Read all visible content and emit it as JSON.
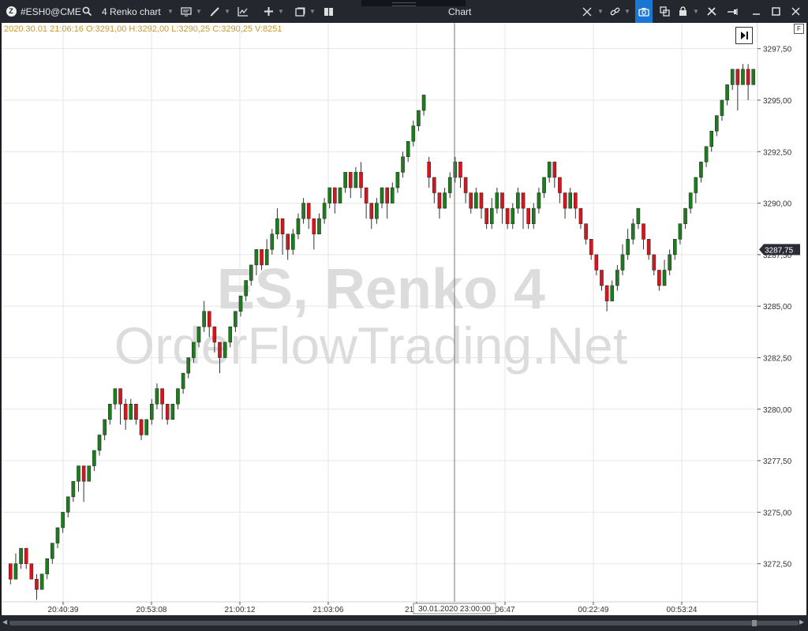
{
  "toolbar": {
    "symbol": "#ESH0@CME",
    "chart_type_label": "4 Renko chart",
    "window_title": "Chart",
    "icons": [
      "logo-icon",
      "search-icon",
      "template-icon",
      "pencil-icon",
      "indicator-icon",
      "plus-icon",
      "window-icon",
      "layout-icon",
      "crosshair-icon",
      "link-icon",
      "camera-icon",
      "copy-icon",
      "lock-icon",
      "tools-icon",
      "pin-icon",
      "minimize-icon",
      "maximize-icon",
      "close-icon"
    ]
  },
  "info_line": "2020.30.01 21:06:16 O:3291,00 H:3292,00 L:3290,25 C:3290,25 V:8251",
  "watermark": {
    "line1": "ES, Renko 4",
    "line2": "OrderFlowTrading.Net"
  },
  "colors": {
    "up": "#1e7b1e",
    "down": "#d9141c",
    "wick": "#333333",
    "grid": "#e6e6e6",
    "watermark": "#dcdcdc",
    "background": "#ffffff"
  },
  "chart_data": {
    "type": "candlestick",
    "brick_size": 1.0,
    "ylim": [
      3270.0,
      3298.75
    ],
    "y_ticks": [
      "3297,50",
      "3295,00",
      "3292,50",
      "3290,00",
      "3287,50",
      "3285,00",
      "3282,50",
      "3280,00",
      "3277,50",
      "3275,00",
      "3272,50"
    ],
    "x_ticks": [
      "20:40:39",
      "20:53:08",
      "21:00:12",
      "21:03:06",
      "21:",
      "06:47",
      "00:22:49",
      "00:53:24"
    ],
    "current_price_label": "3287,75",
    "current_price": 3287.75,
    "crosshair_label": "30.01.2020 23:00:00",
    "bricks": [
      {
        "open": 3272.5,
        "close": 3271.75,
        "high": 3272.5,
        "low": 3271.5
      },
      {
        "open": 3271.75,
        "close": 3272.5,
        "high": 3273.0,
        "low": 3271.75
      },
      {
        "open": 3272.5,
        "close": 3273.25,
        "high": 3273.25,
        "low": 3272.25
      },
      {
        "open": 3273.25,
        "close": 3272.5,
        "high": 3273.25,
        "low": 3272.25
      },
      {
        "open": 3272.5,
        "close": 3271.75,
        "high": 3272.5,
        "low": 3271.75
      },
      {
        "open": 3271.75,
        "close": 3271.25,
        "high": 3272.0,
        "low": 3270.75
      },
      {
        "open": 3271.25,
        "close": 3272.0,
        "high": 3272.0,
        "low": 3271.25
      },
      {
        "open": 3272.0,
        "close": 3272.75,
        "high": 3272.75,
        "low": 3271.75
      },
      {
        "open": 3272.75,
        "close": 3273.5,
        "high": 3273.5,
        "low": 3272.5
      },
      {
        "open": 3273.5,
        "close": 3274.25,
        "high": 3274.25,
        "low": 3273.25
      },
      {
        "open": 3274.25,
        "close": 3275.0,
        "high": 3275.0,
        "low": 3274.0
      },
      {
        "open": 3275.0,
        "close": 3275.75,
        "high": 3275.75,
        "low": 3274.75
      },
      {
        "open": 3275.75,
        "close": 3276.5,
        "high": 3276.5,
        "low": 3275.5
      },
      {
        "open": 3276.5,
        "close": 3277.25,
        "high": 3277.25,
        "low": 3276.0
      },
      {
        "open": 3277.25,
        "close": 3276.5,
        "high": 3277.25,
        "low": 3275.5
      },
      {
        "open": 3276.5,
        "close": 3277.25,
        "high": 3277.25,
        "low": 3276.5
      },
      {
        "open": 3277.25,
        "close": 3278.0,
        "high": 3278.0,
        "low": 3277.0
      },
      {
        "open": 3278.0,
        "close": 3278.75,
        "high": 3278.75,
        "low": 3277.75
      },
      {
        "open": 3278.75,
        "close": 3279.5,
        "high": 3279.5,
        "low": 3278.5
      },
      {
        "open": 3279.5,
        "close": 3280.25,
        "high": 3280.25,
        "low": 3279.25
      },
      {
        "open": 3280.25,
        "close": 3281.0,
        "high": 3281.0,
        "low": 3280.0
      },
      {
        "open": 3281.0,
        "close": 3280.25,
        "high": 3281.0,
        "low": 3279.25
      },
      {
        "open": 3280.25,
        "close": 3279.5,
        "high": 3280.5,
        "low": 3279.0
      },
      {
        "open": 3279.5,
        "close": 3280.25,
        "high": 3280.5,
        "low": 3279.5
      },
      {
        "open": 3280.25,
        "close": 3279.5,
        "high": 3280.25,
        "low": 3279.25
      },
      {
        "open": 3279.5,
        "close": 3278.75,
        "high": 3279.5,
        "low": 3278.5
      },
      {
        "open": 3278.75,
        "close": 3279.5,
        "high": 3279.5,
        "low": 3278.75
      },
      {
        "open": 3279.5,
        "close": 3280.25,
        "high": 3280.5,
        "low": 3279.25
      },
      {
        "open": 3280.25,
        "close": 3281.0,
        "high": 3281.25,
        "low": 3280.0
      },
      {
        "open": 3281.0,
        "close": 3280.25,
        "high": 3281.0,
        "low": 3279.5
      },
      {
        "open": 3280.25,
        "close": 3279.5,
        "high": 3280.25,
        "low": 3279.25
      },
      {
        "open": 3279.5,
        "close": 3280.25,
        "high": 3280.25,
        "low": 3279.5
      },
      {
        "open": 3280.25,
        "close": 3281.0,
        "high": 3281.0,
        "low": 3280.0
      },
      {
        "open": 3281.0,
        "close": 3281.75,
        "high": 3281.75,
        "low": 3280.75
      },
      {
        "open": 3281.75,
        "close": 3282.5,
        "high": 3282.5,
        "low": 3281.5
      },
      {
        "open": 3282.5,
        "close": 3283.25,
        "high": 3283.25,
        "low": 3282.25
      },
      {
        "open": 3283.25,
        "close": 3284.0,
        "high": 3284.0,
        "low": 3283.0
      },
      {
        "open": 3284.0,
        "close": 3284.75,
        "high": 3285.25,
        "low": 3283.75
      },
      {
        "open": 3284.75,
        "close": 3284.0,
        "high": 3284.75,
        "low": 3283.5
      },
      {
        "open": 3284.0,
        "close": 3283.25,
        "high": 3284.0,
        "low": 3282.75
      },
      {
        "open": 3283.25,
        "close": 3282.5,
        "high": 3283.25,
        "low": 3281.75
      },
      {
        "open": 3282.5,
        "close": 3283.25,
        "high": 3283.25,
        "low": 3282.5
      },
      {
        "open": 3283.25,
        "close": 3284.0,
        "high": 3284.0,
        "low": 3283.0
      },
      {
        "open": 3284.0,
        "close": 3284.75,
        "high": 3284.75,
        "low": 3283.75
      },
      {
        "open": 3284.75,
        "close": 3285.5,
        "high": 3285.5,
        "low": 3284.5
      },
      {
        "open": 3285.5,
        "close": 3286.25,
        "high": 3286.25,
        "low": 3285.25
      },
      {
        "open": 3286.25,
        "close": 3287.0,
        "high": 3287.0,
        "low": 3286.0
      },
      {
        "open": 3287.0,
        "close": 3287.75,
        "high": 3287.75,
        "low": 3286.5
      },
      {
        "open": 3287.75,
        "close": 3287.0,
        "high": 3287.75,
        "low": 3286.75
      },
      {
        "open": 3287.0,
        "close": 3287.75,
        "high": 3288.25,
        "low": 3287.0
      },
      {
        "open": 3287.75,
        "close": 3288.5,
        "high": 3288.75,
        "low": 3287.5
      },
      {
        "open": 3288.5,
        "close": 3289.25,
        "high": 3289.75,
        "low": 3288.25
      },
      {
        "open": 3289.25,
        "close": 3288.5,
        "high": 3289.25,
        "low": 3287.5
      },
      {
        "open": 3288.5,
        "close": 3287.75,
        "high": 3288.5,
        "low": 3287.25
      },
      {
        "open": 3287.75,
        "close": 3288.5,
        "high": 3288.75,
        "low": 3287.5
      },
      {
        "open": 3288.5,
        "close": 3289.25,
        "high": 3289.5,
        "low": 3288.25
      },
      {
        "open": 3289.25,
        "close": 3290.0,
        "high": 3290.25,
        "low": 3289.0
      },
      {
        "open": 3290.0,
        "close": 3289.25,
        "high": 3290.0,
        "low": 3288.75
      },
      {
        "open": 3289.25,
        "close": 3288.5,
        "high": 3289.25,
        "low": 3287.75
      },
      {
        "open": 3288.5,
        "close": 3289.25,
        "high": 3289.5,
        "low": 3288.5
      },
      {
        "open": 3289.25,
        "close": 3290.0,
        "high": 3290.25,
        "low": 3289.0
      },
      {
        "open": 3290.0,
        "close": 3290.75,
        "high": 3290.75,
        "low": 3289.75
      },
      {
        "open": 3290.75,
        "close": 3290.0,
        "high": 3290.75,
        "low": 3289.5
      },
      {
        "open": 3290.0,
        "close": 3290.75,
        "high": 3290.75,
        "low": 3290.0
      },
      {
        "open": 3290.75,
        "close": 3291.5,
        "high": 3291.5,
        "low": 3290.5
      },
      {
        "open": 3291.5,
        "close": 3290.75,
        "high": 3291.5,
        "low": 3290.25
      },
      {
        "open": 3290.75,
        "close": 3291.5,
        "high": 3291.75,
        "low": 3290.75
      },
      {
        "open": 3291.5,
        "close": 3290.75,
        "high": 3292.0,
        "low": 3290.25
      },
      {
        "open": 3290.75,
        "close": 3290.0,
        "high": 3290.75,
        "low": 3289.25
      },
      {
        "open": 3290.0,
        "close": 3289.25,
        "high": 3290.0,
        "low": 3288.75
      },
      {
        "open": 3289.25,
        "close": 3290.0,
        "high": 3290.25,
        "low": 3289.0
      },
      {
        "open": 3290.0,
        "close": 3290.75,
        "high": 3290.75,
        "low": 3289.75
      },
      {
        "open": 3290.75,
        "close": 3290.0,
        "high": 3290.75,
        "low": 3289.25
      },
      {
        "open": 3290.0,
        "close": 3290.75,
        "high": 3291.0,
        "low": 3290.0
      },
      {
        "open": 3290.75,
        "close": 3291.5,
        "high": 3291.5,
        "low": 3290.5
      },
      {
        "open": 3291.5,
        "close": 3292.25,
        "high": 3292.5,
        "low": 3291.25
      },
      {
        "open": 3292.25,
        "close": 3293.0,
        "high": 3293.0,
        "low": 3292.0
      },
      {
        "open": 3293.0,
        "close": 3293.75,
        "high": 3294.0,
        "low": 3292.75
      },
      {
        "open": 3293.75,
        "close": 3294.5,
        "high": 3294.5,
        "low": 3293.5
      },
      {
        "open": 3294.5,
        "close": 3295.25,
        "high": 3295.25,
        "low": 3294.25
      },
      {
        "open": 3292.0,
        "close": 3291.25,
        "high": 3292.25,
        "low": 3290.75
      },
      {
        "open": 3291.25,
        "close": 3290.5,
        "high": 3291.25,
        "low": 3290.0
      },
      {
        "open": 3290.5,
        "close": 3289.75,
        "high": 3290.5,
        "low": 3289.25
      },
      {
        "open": 3289.75,
        "close": 3290.5,
        "high": 3290.75,
        "low": 3289.75
      },
      {
        "open": 3290.5,
        "close": 3291.25,
        "high": 3291.5,
        "low": 3290.25
      },
      {
        "open": 3291.25,
        "close": 3292.0,
        "high": 3292.25,
        "low": 3291.0
      },
      {
        "open": 3292.0,
        "close": 3291.25,
        "high": 3292.0,
        "low": 3290.75
      },
      {
        "open": 3291.25,
        "close": 3290.5,
        "high": 3291.25,
        "low": 3290.0
      },
      {
        "open": 3290.5,
        "close": 3289.75,
        "high": 3290.5,
        "low": 3289.5
      },
      {
        "open": 3289.75,
        "close": 3290.5,
        "high": 3290.75,
        "low": 3289.75
      },
      {
        "open": 3290.5,
        "close": 3289.75,
        "high": 3290.5,
        "low": 3289.25
      },
      {
        "open": 3289.75,
        "close": 3289.0,
        "high": 3289.75,
        "low": 3288.75
      },
      {
        "open": 3289.0,
        "close": 3289.75,
        "high": 3290.25,
        "low": 3288.75
      },
      {
        "open": 3289.75,
        "close": 3290.5,
        "high": 3290.75,
        "low": 3289.5
      },
      {
        "open": 3290.5,
        "close": 3289.75,
        "high": 3290.5,
        "low": 3289.0
      },
      {
        "open": 3289.75,
        "close": 3289.0,
        "high": 3289.75,
        "low": 3288.75
      },
      {
        "open": 3289.0,
        "close": 3289.75,
        "high": 3290.0,
        "low": 3288.75
      },
      {
        "open": 3289.75,
        "close": 3290.5,
        "high": 3290.75,
        "low": 3289.5
      },
      {
        "open": 3290.5,
        "close": 3289.75,
        "high": 3290.5,
        "low": 3288.75
      },
      {
        "open": 3289.75,
        "close": 3289.0,
        "high": 3289.75,
        "low": 3288.75
      },
      {
        "open": 3289.0,
        "close": 3289.75,
        "high": 3290.0,
        "low": 3288.75
      },
      {
        "open": 3289.75,
        "close": 3290.5,
        "high": 3290.75,
        "low": 3289.5
      },
      {
        "open": 3290.5,
        "close": 3291.25,
        "high": 3291.25,
        "low": 3290.25
      },
      {
        "open": 3291.25,
        "close": 3292.0,
        "high": 3292.0,
        "low": 3291.0
      },
      {
        "open": 3292.0,
        "close": 3291.25,
        "high": 3292.0,
        "low": 3290.75
      },
      {
        "open": 3291.25,
        "close": 3290.5,
        "high": 3291.25,
        "low": 3290.0
      },
      {
        "open": 3290.5,
        "close": 3289.75,
        "high": 3290.5,
        "low": 3289.25
      },
      {
        "open": 3289.75,
        "close": 3290.5,
        "high": 3290.75,
        "low": 3289.75
      },
      {
        "open": 3290.5,
        "close": 3289.75,
        "high": 3290.5,
        "low": 3289.25
      },
      {
        "open": 3289.75,
        "close": 3289.0,
        "high": 3289.75,
        "low": 3288.75
      },
      {
        "open": 3289.0,
        "close": 3288.25,
        "high": 3289.0,
        "low": 3288.0
      },
      {
        "open": 3288.25,
        "close": 3287.5,
        "high": 3288.25,
        "low": 3287.25
      },
      {
        "open": 3287.5,
        "close": 3286.75,
        "high": 3287.5,
        "low": 3286.5
      },
      {
        "open": 3286.75,
        "close": 3286.0,
        "high": 3286.75,
        "low": 3285.75
      },
      {
        "open": 3286.0,
        "close": 3285.25,
        "high": 3286.0,
        "low": 3284.75
      },
      {
        "open": 3285.25,
        "close": 3286.0,
        "high": 3286.25,
        "low": 3285.25
      },
      {
        "open": 3286.0,
        "close": 3286.75,
        "high": 3287.0,
        "low": 3285.75
      },
      {
        "open": 3286.75,
        "close": 3287.5,
        "high": 3288.0,
        "low": 3286.5
      },
      {
        "open": 3287.5,
        "close": 3288.25,
        "high": 3288.75,
        "low": 3287.25
      },
      {
        "open": 3288.25,
        "close": 3289.0,
        "high": 3289.25,
        "low": 3288.0
      },
      {
        "open": 3289.0,
        "close": 3289.75,
        "high": 3289.75,
        "low": 3288.75
      },
      {
        "open": 3289.0,
        "close": 3288.25,
        "high": 3289.0,
        "low": 3287.75
      },
      {
        "open": 3288.25,
        "close": 3287.5,
        "high": 3288.25,
        "low": 3287.25
      },
      {
        "open": 3287.5,
        "close": 3286.75,
        "high": 3287.5,
        "low": 3286.5
      },
      {
        "open": 3286.75,
        "close": 3286.0,
        "high": 3286.75,
        "low": 3285.75
      },
      {
        "open": 3286.0,
        "close": 3286.75,
        "high": 3287.25,
        "low": 3286.0
      },
      {
        "open": 3286.75,
        "close": 3287.5,
        "high": 3287.75,
        "low": 3286.5
      },
      {
        "open": 3287.5,
        "close": 3288.25,
        "high": 3288.25,
        "low": 3287.25
      },
      {
        "open": 3288.25,
        "close": 3289.0,
        "high": 3289.0,
        "low": 3288.0
      },
      {
        "open": 3289.0,
        "close": 3289.75,
        "high": 3289.75,
        "low": 3288.75
      },
      {
        "open": 3289.75,
        "close": 3290.5,
        "high": 3290.5,
        "low": 3289.5
      },
      {
        "open": 3290.5,
        "close": 3291.25,
        "high": 3291.25,
        "low": 3290.0
      },
      {
        "open": 3291.25,
        "close": 3292.0,
        "high": 3292.0,
        "low": 3291.0
      },
      {
        "open": 3292.0,
        "close": 3292.75,
        "high": 3292.75,
        "low": 3291.75
      },
      {
        "open": 3292.75,
        "close": 3293.5,
        "high": 3293.5,
        "low": 3292.5
      },
      {
        "open": 3293.5,
        "close": 3294.25,
        "high": 3294.25,
        "low": 3293.25
      },
      {
        "open": 3294.25,
        "close": 3295.0,
        "high": 3295.0,
        "low": 3294.0
      },
      {
        "open": 3295.0,
        "close": 3295.75,
        "high": 3295.75,
        "low": 3294.75
      },
      {
        "open": 3295.75,
        "close": 3296.5,
        "high": 3296.5,
        "low": 3295.5
      },
      {
        "open": 3296.5,
        "close": 3295.75,
        "high": 3296.5,
        "low": 3294.5
      },
      {
        "open": 3295.75,
        "close": 3296.5,
        "high": 3296.75,
        "low": 3295.75
      },
      {
        "open": 3296.5,
        "close": 3295.75,
        "high": 3296.75,
        "low": 3295.0
      },
      {
        "open": 3295.75,
        "close": 3296.5,
        "high": 3296.5,
        "low": 3295.75
      }
    ]
  }
}
